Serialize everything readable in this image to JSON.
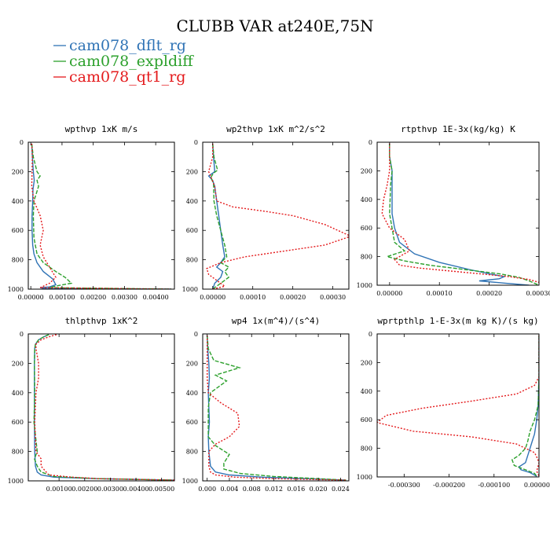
{
  "figure": {
    "title": "CLUBB VAR at240E,75N",
    "legend": [
      {
        "label": "cam078_dflt_rg",
        "color": "#2f73b5"
      },
      {
        "label": "cam078_expldiff",
        "color": "#2ca02c"
      },
      {
        "label": "cam078_qt1_rg",
        "color": "#e41a1c"
      }
    ]
  },
  "chart_data": [
    {
      "type": "line",
      "title": "wpthvp   1xK m/s",
      "xlim": [
        -8e-05,
        0.0046
      ],
      "ylim": [
        1000,
        0
      ],
      "xticks": [
        0.0,
        0.001,
        0.002,
        0.003,
        0.004
      ],
      "xtick_labels": [
        "0.00000",
        "0.00100",
        "0.00200",
        "0.00300",
        "0.00400"
      ],
      "yticks": [
        0,
        200,
        400,
        600,
        800,
        1000
      ],
      "ytick_labels": [
        "0",
        "200",
        "400",
        "600",
        "800",
        "1000"
      ],
      "series": [
        {
          "name": "cam078_dflt_rg",
          "dash": "solid",
          "x": [
            3e-05,
            5e-05,
            8e-05,
            0.00011,
            7e-05,
            6e-05,
            4e-05,
            4e-05,
            6e-05,
            0.0001,
            0.0002,
            0.0004,
            0.0007,
            0.0008,
            0.0006,
            0.0003,
            0.0004,
            0.0045
          ],
          "y": [
            10,
            100,
            200,
            260,
            320,
            400,
            500,
            600,
            700,
            760,
            820,
            880,
            930,
            970,
            985,
            990,
            995,
            1000
          ]
        },
        {
          "name": "cam078_expldiff",
          "dash": "dash",
          "x": [
            3e-05,
            8e-05,
            0.0002,
            0.0003,
            0.0002,
            0.00025,
            0.0001,
            8e-05,
            0.0001,
            0.0002,
            0.0004,
            0.0008,
            0.0011,
            0.0013,
            0.0009,
            0.0006,
            0.0045
          ],
          "y": [
            10,
            100,
            200,
            230,
            260,
            300,
            400,
            500,
            650,
            760,
            820,
            880,
            920,
            960,
            975,
            990,
            1000
          ]
        },
        {
          "name": "cam078_qt1_rg",
          "dash": "dot",
          "x": [
            3e-05,
            5e-05,
            4e-05,
            3e-05,
            0.0001,
            0.0003,
            0.0004,
            0.0003,
            0.0004,
            0.0006,
            0.0008,
            0.0006,
            0.0004,
            0.0003,
            0.0045
          ],
          "y": [
            10,
            100,
            200,
            300,
            400,
            500,
            600,
            700,
            780,
            850,
            920,
            960,
            980,
            990,
            1000
          ]
        }
      ]
    },
    {
      "type": "line",
      "title": "wp2thvp   1xK m^2/s^2",
      "xlim": [
        -2.5e-05,
        0.00034
      ],
      "ylim": [
        1000,
        0
      ],
      "xticks": [
        0.0,
        0.0001,
        0.0002,
        0.0003
      ],
      "xtick_labels": [
        "0.00000",
        "0.00010",
        "0.00020",
        "0.00030"
      ],
      "yticks": [
        0,
        200,
        400,
        600,
        800,
        1000
      ],
      "ytick_labels": [
        "0",
        "200",
        "400",
        "600",
        "800",
        "1000"
      ],
      "series": [
        {
          "name": "cam078_dflt_rg",
          "dash": "solid",
          "x": [
            0.0,
            2e-06,
            5e-06,
            -1e-05,
            0.0,
            5e-06,
            1e-05,
            1.5e-05,
            2e-05,
            2.5e-05,
            3e-05,
            2e-05,
            1e-05,
            2.5e-05,
            2e-05,
            5e-06,
            0.0
          ],
          "y": [
            10,
            100,
            200,
            230,
            260,
            300,
            400,
            500,
            600,
            700,
            780,
            820,
            850,
            880,
            920,
            960,
            1000
          ]
        },
        {
          "name": "cam078_expldiff",
          "dash": "dash",
          "x": [
            0.0,
            3e-06,
            1.2e-05,
            2e-06,
            -5e-06,
            2e-06,
            3e-06,
            1e-05,
            2e-05,
            3e-05,
            3.5e-05,
            2e-05,
            4e-05,
            3e-05,
            4e-05,
            2e-05,
            0.0
          ],
          "y": [
            10,
            100,
            190,
            210,
            240,
            280,
            400,
            500,
            600,
            700,
            780,
            820,
            850,
            880,
            920,
            960,
            1000
          ]
        },
        {
          "name": "cam078_qt1_rg",
          "dash": "dot",
          "x": [
            0.0,
            0.0,
            -1e-05,
            5e-06,
            1e-05,
            5e-05,
            0.00013,
            0.0002,
            0.00028,
            0.000345,
            0.00028,
            0.00018,
            8e-05,
            2e-05,
            -1.5e-05,
            -1e-05,
            1e-05,
            3e-05,
            0.0
          ],
          "y": [
            10,
            100,
            200,
            300,
            400,
            440,
            470,
            500,
            560,
            640,
            700,
            740,
            780,
            820,
            860,
            900,
            940,
            980,
            1000
          ]
        }
      ]
    },
    {
      "type": "line",
      "title": "rtpthvp   1E-3x(kg/kg) K",
      "xlim": [
        -2.5e-05,
        0.0003
      ],
      "ylim": [
        1000,
        0
      ],
      "xticks": [
        0.0,
        0.0001,
        0.0002,
        0.0003
      ],
      "xtick_labels": [
        "0.00000",
        "0.00010",
        "0.00020",
        "0.00030"
      ],
      "yticks": [
        0,
        200,
        400,
        600,
        800,
        1000
      ],
      "ytick_labels": [
        "0",
        "200",
        "400",
        "600",
        "800",
        "1000"
      ],
      "series": [
        {
          "name": "cam078_dflt_rg",
          "dash": "solid",
          "x": [
            0.0,
            0.0,
            5e-06,
            5e-06,
            5e-06,
            5e-06,
            1e-05,
            2e-05,
            5e-05,
            0.0001,
            0.00016,
            0.0002,
            0.00023,
            0.00022,
            0.00018,
            0.00023,
            0.00028
          ],
          "y": [
            10,
            100,
            200,
            300,
            400,
            500,
            600,
            700,
            780,
            840,
            890,
            920,
            940,
            955,
            970,
            985,
            1000
          ]
        },
        {
          "name": "cam078_expldiff",
          "dash": "dash",
          "x": [
            0.0,
            0.0,
            5e-06,
            2e-06,
            1e-06,
            0.0,
            5e-06,
            1e-05,
            3e-05,
            -5e-06,
            3e-05,
            8e-05,
            0.00015,
            0.00022,
            0.00026,
            0.00028,
            0.0003
          ],
          "y": [
            10,
            100,
            200,
            300,
            400,
            500,
            600,
            700,
            760,
            800,
            830,
            860,
            890,
            920,
            945,
            970,
            1000
          ]
        },
        {
          "name": "cam078_qt1_rg",
          "dash": "dot",
          "x": [
            0.0,
            0.0,
            0.0,
            -5e-06,
            -1.2e-05,
            -1.5e-05,
            0.0,
            3e-05,
            4e-05,
            1e-05,
            2e-05,
            6e-05,
            0.00012,
            0.00018,
            0.00024,
            0.00028,
            0.0003
          ],
          "y": [
            10,
            100,
            200,
            300,
            400,
            500,
            600,
            680,
            760,
            820,
            860,
            880,
            900,
            920,
            940,
            960,
            980
          ]
        }
      ]
    },
    {
      "type": "line",
      "title": "thlpthvp   1xK^2",
      "xlim": [
        -0.0002,
        0.0055
      ],
      "ylim": [
        1000,
        0
      ],
      "xticks": [
        0.001,
        0.002,
        0.003,
        0.004,
        0.005
      ],
      "xtick_labels": [
        "0.00100",
        "0.00200",
        "0.00300",
        "0.00400",
        "0.00500"
      ],
      "yticks": [
        0,
        200,
        400,
        600,
        800,
        1000
      ],
      "ytick_labels": [
        "0",
        "200",
        "400",
        "600",
        "800",
        "1000"
      ],
      "series": [
        {
          "name": "cam078_dflt_rg",
          "dash": "solid",
          "x": [
            0.0006,
            0.0004,
            0.0002,
            8e-05,
            5e-05,
            4e-05,
            4e-05,
            4e-05,
            5e-05,
            8e-05,
            0.00015,
            0.0003,
            0.0008,
            0.0025,
            0.0055
          ],
          "y": [
            5,
            20,
            40,
            70,
            100,
            200,
            400,
            600,
            800,
            900,
            940,
            960,
            975,
            985,
            995
          ]
        },
        {
          "name": "cam078_expldiff",
          "dash": "dash",
          "x": [
            0.0006,
            0.0004,
            0.0002,
            8e-05,
            5e-05,
            4e-05,
            5e-05,
            2e-05,
            0.00015,
            4e-05,
            0.00015,
            0.0003,
            0.0008,
            0.0025,
            0.0055
          ],
          "y": [
            5,
            20,
            40,
            70,
            100,
            200,
            400,
            600,
            800,
            850,
            900,
            940,
            970,
            985,
            995
          ]
        },
        {
          "name": "cam078_qt1_rg",
          "dash": "dot",
          "x": [
            0.0009,
            0.0006,
            0.0003,
            0.0001,
            0.0001,
            0.0002,
            0.0002,
            0.0001,
            5e-05,
            0.0001,
            0.0003,
            0.0003,
            0.0006,
            0.0015,
            0.0025,
            0.0055
          ],
          "y": [
            5,
            20,
            40,
            70,
            100,
            200,
            300,
            400,
            600,
            800,
            850,
            900,
            960,
            975,
            985,
            995
          ]
        }
      ]
    },
    {
      "type": "line",
      "title": "wp4   1x(m^4)/(s^4)",
      "xlim": [
        -0.0008,
        0.0255
      ],
      "ylim": [
        1000,
        0
      ],
      "xticks": [
        0.0,
        0.004,
        0.008,
        0.012,
        0.016,
        0.02,
        0.024
      ],
      "xtick_labels": [
        "0.000",
        "0.004",
        "0.008",
        "0.012",
        "0.016",
        "0.020",
        "0.024"
      ],
      "yticks": [
        0,
        200,
        400,
        600,
        800,
        1000
      ],
      "ytick_labels": [
        "0",
        "200",
        "400",
        "600",
        "800",
        "1000"
      ],
      "series": [
        {
          "name": "cam078_dflt_rg",
          "dash": "solid",
          "x": [
            0.0,
            0.0001,
            0.0003,
            0.0004,
            0.0002,
            0.0003,
            0.0004,
            0.0002,
            0.0003,
            0.0006,
            0.0015,
            0.004,
            0.01,
            0.018,
            0.025
          ],
          "y": [
            10,
            100,
            200,
            300,
            400,
            500,
            600,
            700,
            800,
            900,
            940,
            960,
            975,
            985,
            995
          ]
        },
        {
          "name": "cam078_expldiff",
          "dash": "dash",
          "x": [
            0.0,
            0.0002,
            0.0012,
            0.0058,
            0.0015,
            0.0035,
            0.0006,
            0.0002,
            0.0002,
            0.0015,
            0.004,
            0.003,
            0.003,
            0.006,
            0.012,
            0.02,
            0.025
          ],
          "y": [
            10,
            100,
            180,
            230,
            280,
            320,
            400,
            500,
            700,
            760,
            820,
            880,
            920,
            950,
            970,
            985,
            995
          ]
        },
        {
          "name": "cam078_qt1_rg",
          "dash": "dot",
          "x": [
            0.0,
            0.0,
            0.0,
            0.0,
            0.0002,
            0.0025,
            0.0055,
            0.0058,
            0.004,
            0.0015,
            0.0003,
            0.0003,
            0.0006,
            0.0015,
            0.005,
            0.012,
            0.025
          ],
          "y": [
            10,
            100,
            200,
            300,
            400,
            470,
            540,
            630,
            700,
            750,
            800,
            900,
            940,
            960,
            975,
            985,
            995
          ]
        }
      ]
    },
    {
      "type": "line",
      "title": "wprtpthlp   1-E-3x(m kg K)/(s kg)",
      "xlim": [
        -0.00036,
        0.0
      ],
      "ylim": [
        1000,
        0
      ],
      "xticks": [
        -0.0003,
        -0.0002,
        -0.0001,
        0.0
      ],
      "xtick_labels": [
        "-0.000300",
        "-0.000200",
        "-0.000100",
        "0.000000"
      ],
      "yticks": [
        0,
        200,
        400,
        600,
        800,
        1000
      ],
      "ytick_labels": [
        "0",
        "200",
        "400",
        "600",
        "800",
        "1000"
      ],
      "series": [
        {
          "name": "cam078_dflt_rg",
          "dash": "solid",
          "x": [
            0.0,
            0.0,
            0.0,
            -2e-06,
            -5e-06,
            -1e-05,
            -1.5e-05,
            -2e-05,
            -2.5e-05,
            -3e-05,
            -4.5e-05,
            -4e-05,
            -2e-05,
            -5e-06
          ],
          "y": [
            10,
            100,
            300,
            500,
            600,
            700,
            750,
            800,
            850,
            900,
            930,
            950,
            970,
            995
          ]
        },
        {
          "name": "cam078_expldiff",
          "dash": "dash",
          "x": [
            0.0,
            0.0,
            0.0,
            -2e-06,
            -1e-05,
            -2e-05,
            -2.5e-05,
            -3e-05,
            -4.5e-05,
            -6e-05,
            -5.5e-05,
            -3e-05,
            -1e-05,
            -5e-06
          ],
          "y": [
            10,
            100,
            300,
            500,
            600,
            680,
            750,
            800,
            850,
            880,
            920,
            950,
            975,
            995
          ]
        },
        {
          "name": "cam078_qt1_rg",
          "dash": "dot",
          "x": [
            0.0,
            0.0,
            0.0,
            -1e-05,
            -5e-05,
            -0.00015,
            -0.00026,
            -0.00034,
            -0.00036,
            -0.00028,
            -0.00015,
            -5e-05,
            -1e-05,
            -5e-06,
            0.0,
            -5e-06,
            0.0
          ],
          "y": [
            10,
            100,
            300,
            360,
            420,
            470,
            520,
            570,
            620,
            680,
            720,
            770,
            830,
            860,
            900,
            960,
            995
          ]
        }
      ]
    }
  ]
}
